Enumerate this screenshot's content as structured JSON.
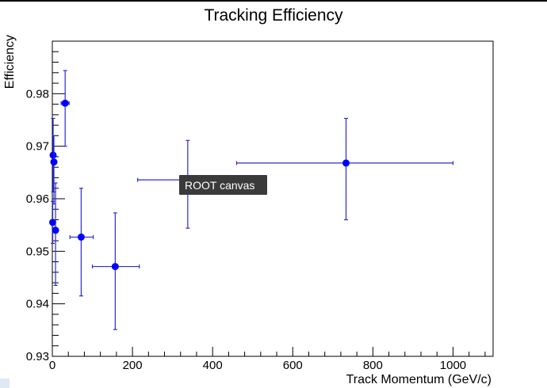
{
  "tooltip": {
    "text": "ROOT canvas"
  },
  "chart_data": {
    "type": "scatter",
    "title": "Tracking Efficiency",
    "xlabel": "Track Momentum (GeV/c)",
    "ylabel": "Efficiency",
    "xlim": [
      0,
      1100
    ],
    "ylim": [
      0.93,
      0.99
    ],
    "xticks": [
      0,
      200,
      400,
      600,
      800,
      1000
    ],
    "yticks": [
      0.93,
      0.94,
      0.95,
      0.96,
      0.97,
      0.98
    ],
    "xtick_labels": [
      "0",
      "200",
      "400",
      "600",
      "800",
      "1000"
    ],
    "ytick_labels": [
      "0.93",
      "0.94",
      "0.95",
      "0.96",
      "0.97",
      "0.98"
    ],
    "grid": false,
    "legend": "none",
    "marker_color": "#0000ff",
    "error_bar_color": "#2b2bd6",
    "series": [
      {
        "points": [
          {
            "x": 1,
            "y": 0.9555,
            "xerr": [
              1,
              1
            ],
            "yerr": [
              0.004,
              0.004
            ]
          },
          {
            "x": 2,
            "y": 0.9683,
            "xerr": [
              1,
              1
            ],
            "yerr": [
              0.007,
              0.007
            ]
          },
          {
            "x": 4,
            "y": 0.967,
            "xerr": [
              2,
              2
            ],
            "yerr": [
              0.008,
              0.005
            ]
          },
          {
            "x": 8,
            "y": 0.954,
            "xerr": [
              3,
              3
            ],
            "yerr": [
              0.0105,
              0.009
            ]
          },
          {
            "x": 32,
            "y": 0.9782,
            "xerr": [
              10,
              10
            ],
            "yerr": [
              0.0082,
              0.0062
            ]
          },
          {
            "x": 72,
            "y": 0.9527,
            "xerr": [
              28,
              30
            ],
            "yerr": [
              0.0112,
              0.0093
            ]
          },
          {
            "x": 157,
            "y": 0.9471,
            "xerr": [
              57,
              60
            ],
            "yerr": [
              0.012,
              0.0102
            ]
          },
          {
            "x": 338,
            "y": 0.9636,
            "xerr": [
              125,
              125
            ],
            "yerr": [
              0.0092,
              0.0075
            ]
          },
          {
            "x": 733,
            "y": 0.9668,
            "xerr": [
              273,
              267
            ],
            "yerr": [
              0.0108,
              0.0085
            ]
          }
        ]
      }
    ]
  }
}
